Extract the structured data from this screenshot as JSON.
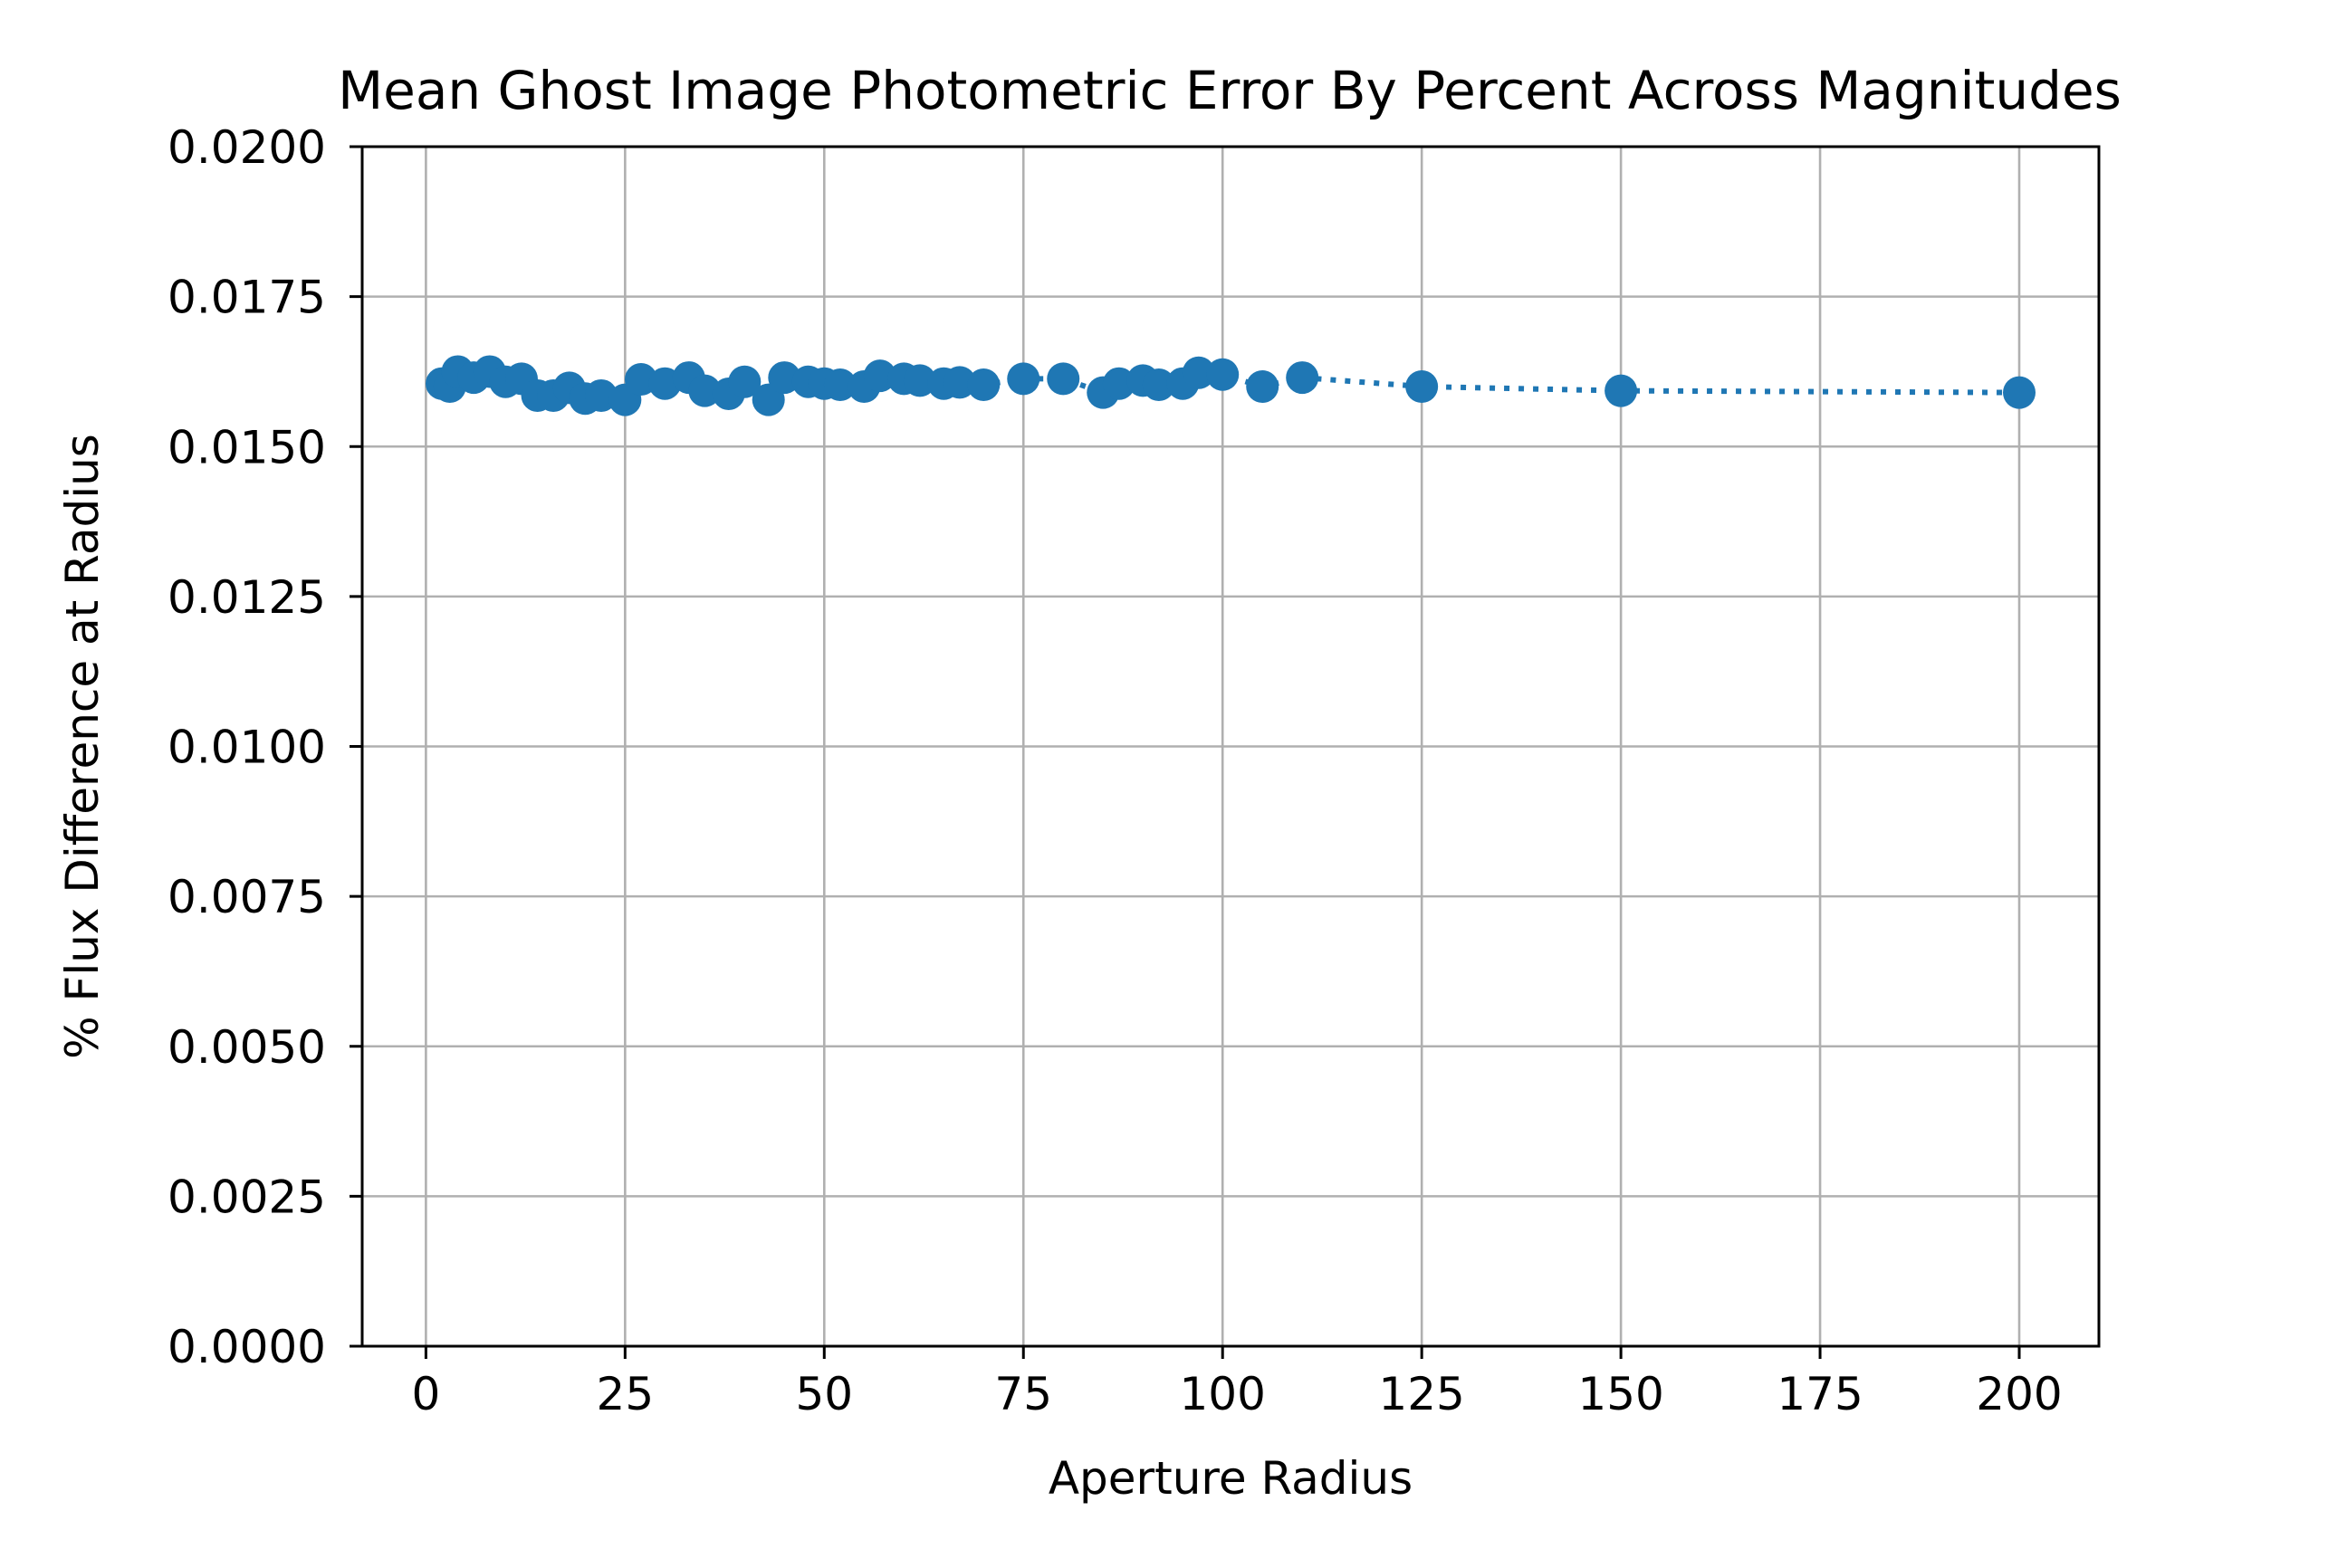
{
  "chart_data": {
    "type": "line",
    "title": "Mean Ghost Image Photometric Error By Percent Across Magnitudes",
    "xlabel": "Aperture Radius",
    "ylabel": "% Flux Difference at Radius",
    "xlim": [
      -8,
      210
    ],
    "ylim": [
      0,
      0.02
    ],
    "xticks": [
      0,
      25,
      50,
      75,
      100,
      125,
      150,
      175,
      200
    ],
    "xtick_labels": [
      "0",
      "25",
      "50",
      "75",
      "100",
      "125",
      "150",
      "175",
      "200"
    ],
    "yticks": [
      0,
      0.0025,
      0.005,
      0.0075,
      0.01,
      0.0125,
      0.015,
      0.0175,
      0.02
    ],
    "ytick_labels": [
      "0.0000",
      "0.0025",
      "0.0050",
      "0.0075",
      "0.0100",
      "0.0125",
      "0.0150",
      "0.0175",
      "0.0200"
    ],
    "grid": true,
    "series": [
      {
        "color": "#1f77b4",
        "line_style": "dotted",
        "marker": "circle",
        "x": [
          2,
          3,
          4,
          6,
          8,
          10,
          12,
          14,
          16,
          18,
          20,
          22,
          25,
          27,
          30,
          33,
          35,
          38,
          40,
          43,
          45,
          48,
          50,
          52,
          55,
          57,
          60,
          62,
          65,
          67,
          70,
          75,
          80,
          85,
          87,
          90,
          92,
          95,
          97,
          100,
          105,
          110,
          125,
          150,
          200
        ],
        "y": [
          0.01605,
          0.016,
          0.01625,
          0.01615,
          0.01625,
          0.01608,
          0.01613,
          0.01585,
          0.01585,
          0.01598,
          0.0158,
          0.01585,
          0.01578,
          0.01612,
          0.01605,
          0.01615,
          0.01593,
          0.01588,
          0.01608,
          0.01578,
          0.01615,
          0.01608,
          0.01605,
          0.01603,
          0.016,
          0.01618,
          0.01613,
          0.0161,
          0.01605,
          0.01607,
          0.01603,
          0.01613,
          0.01613,
          0.0159,
          0.01605,
          0.0161,
          0.01603,
          0.01605,
          0.01623,
          0.0162,
          0.016,
          0.01615,
          0.016,
          0.01593,
          0.0159
        ]
      }
    ]
  }
}
